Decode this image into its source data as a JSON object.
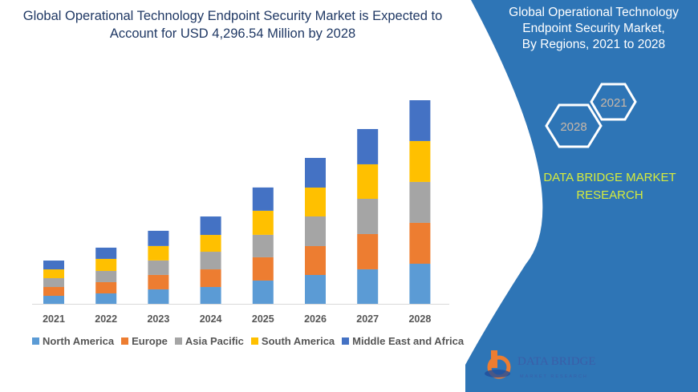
{
  "title": "Global Operational Technology Endpoint Security Market is Expected to Account for USD 4,296.54 Million by 2028",
  "side_panel": {
    "title_lines": [
      "Global Operational Technology",
      "Endpoint Security Market,",
      "By Regions, 2021 to 2028"
    ],
    "hex_start": "2021",
    "hex_end": "2028",
    "brand_lines": [
      "DATA BRIDGE MARKET",
      "RESEARCH"
    ],
    "logo_text": "DATA BRIDGE",
    "logo_subtext": "MARKET RESEARCH",
    "panel_color": "#2e75b6"
  },
  "watermark": "DATA BRIDGE MARKET RESEARCH",
  "chart_data": {
    "type": "bar",
    "stacked": true,
    "title": "Global Operational Technology Endpoint Security Market is Expected to Account for USD 4,296.54 Million by 2028",
    "xlabel": "",
    "ylabel": "",
    "grid": false,
    "legend_position": "bottom",
    "categories": [
      "2021",
      "2022",
      "2023",
      "2024",
      "2025",
      "2026",
      "2027",
      "2028"
    ],
    "series": [
      {
        "name": "North America",
        "color": "#5b9bd5",
        "values": [
          169,
          220,
          305,
          355,
          491,
          609,
          728,
          846
        ]
      },
      {
        "name": "Europe",
        "color": "#ed7d31",
        "values": [
          186,
          237,
          305,
          372,
          491,
          609,
          744,
          863
        ]
      },
      {
        "name": "Asia Pacific",
        "color": "#a5a5a5",
        "values": [
          186,
          237,
          305,
          372,
          474,
          626,
          744,
          863
        ]
      },
      {
        "name": "South America",
        "color": "#ffc000",
        "values": [
          186,
          254,
          305,
          355,
          508,
          609,
          728,
          863
        ]
      },
      {
        "name": "Middle East and Africa",
        "color": "#4472c4",
        "values": [
          186,
          237,
          321,
          389,
          491,
          626,
          744,
          861
        ]
      }
    ],
    "ylim": [
      0,
      4300
    ]
  }
}
